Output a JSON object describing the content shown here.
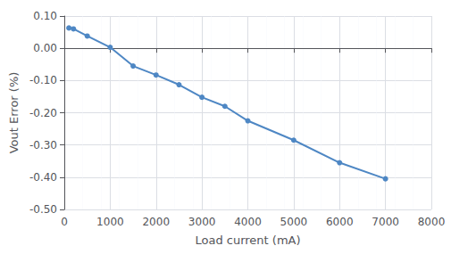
{
  "chart_data": {
    "type": "line",
    "x": [
      100,
      200,
      500,
      1000,
      1500,
      2000,
      2500,
      3000,
      3500,
      4000,
      5000,
      6000,
      7000
    ],
    "values": [
      0.063,
      0.06,
      0.038,
      0.003,
      -0.055,
      -0.083,
      -0.113,
      -0.152,
      -0.18,
      -0.225,
      -0.285,
      -0.355,
      -0.405
    ],
    "color": "#4e87c4",
    "marker": "circle",
    "xlabel": "Load current (mA)",
    "ylabel": "Vout Error (%)",
    "xlim": [
      0,
      8000
    ],
    "ylim": [
      -0.5,
      0.1
    ],
    "xticks": [
      0,
      1000,
      2000,
      3000,
      4000,
      5000,
      6000,
      7000,
      8000
    ],
    "yticks": [
      {
        "value": -0.5,
        "label": "-0.50"
      },
      {
        "value": -0.4,
        "label": "-0.40"
      },
      {
        "value": -0.3,
        "label": "-0.30"
      },
      {
        "value": -0.2,
        "label": "-0.20"
      },
      {
        "value": -0.1,
        "label": "-0.10"
      },
      {
        "value": 0,
        "label": "0.00"
      },
      {
        "value": 0.1,
        "label": "0.10"
      }
    ],
    "grid": true
  }
}
